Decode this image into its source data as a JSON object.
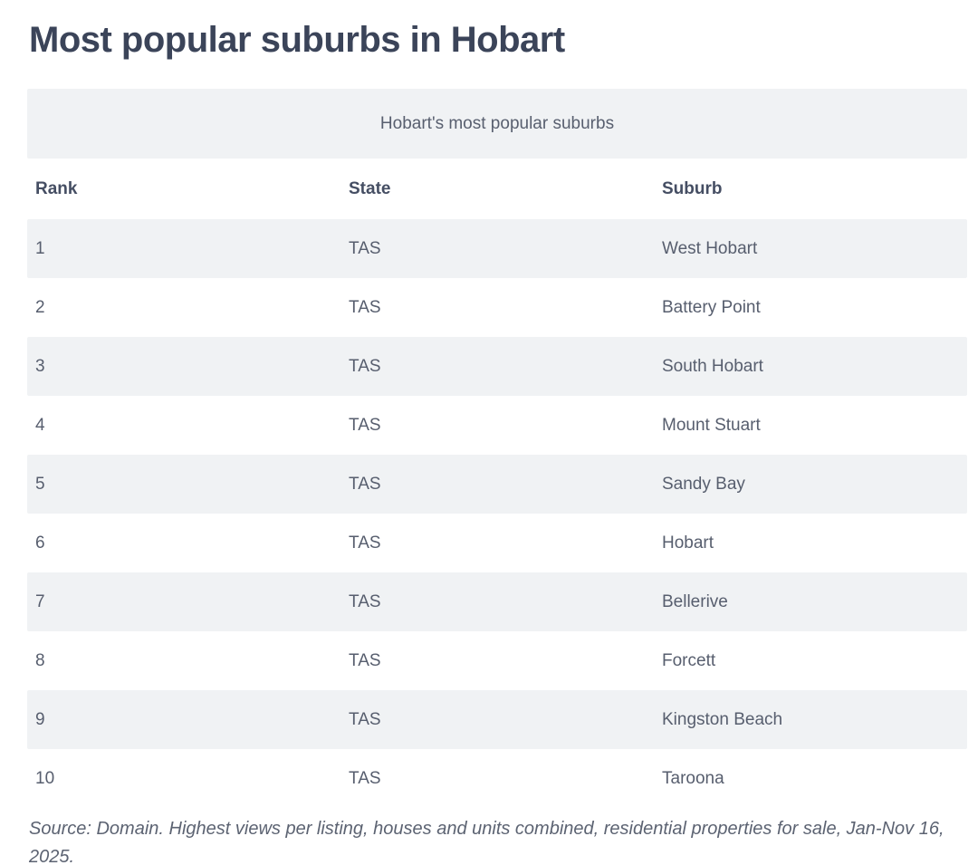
{
  "page": {
    "title": "Most popular suburbs in Hobart",
    "source_note": "Source: Domain. Highest views per listing, houses and units combined, residential properties for sale, Jan-Nov 16, 2025."
  },
  "table": {
    "caption": "Hobart's most popular suburbs",
    "columns": [
      "Rank",
      "State",
      "Suburb"
    ],
    "rows": [
      [
        "1",
        "TAS",
        "West Hobart"
      ],
      [
        "2",
        "TAS",
        "Battery Point"
      ],
      [
        "3",
        "TAS",
        "South Hobart"
      ],
      [
        "4",
        "TAS",
        "Mount Stuart"
      ],
      [
        "5",
        "TAS",
        "Sandy Bay"
      ],
      [
        "6",
        "TAS",
        "Hobart"
      ],
      [
        "7",
        "TAS",
        "Bellerive"
      ],
      [
        "8",
        "TAS",
        "Forcett"
      ],
      [
        "9",
        "TAS",
        "Kingston Beach"
      ],
      [
        "10",
        "TAS",
        "Taroona"
      ]
    ]
  },
  "colors": {
    "title_text": "#3b4459",
    "header_text": "#454e63",
    "cell_text": "#575e6e",
    "stripe_background": "#f0f2f4",
    "page_background": "#ffffff",
    "source_text": "#5c6372"
  },
  "chart_data": {
    "type": "table",
    "title": "Hobart's most popular suburbs",
    "columns": [
      "Rank",
      "State",
      "Suburb"
    ],
    "rows": [
      [
        1,
        "TAS",
        "West Hobart"
      ],
      [
        2,
        "TAS",
        "Battery Point"
      ],
      [
        3,
        "TAS",
        "South Hobart"
      ],
      [
        4,
        "TAS",
        "Mount Stuart"
      ],
      [
        5,
        "TAS",
        "Sandy Bay"
      ],
      [
        6,
        "TAS",
        "Hobart"
      ],
      [
        7,
        "TAS",
        "Bellerive"
      ],
      [
        8,
        "TAS",
        "Forcett"
      ],
      [
        9,
        "TAS",
        "Kingston Beach"
      ],
      [
        10,
        "TAS",
        "Taroona"
      ]
    ],
    "notes": "Source: Domain. Highest views per listing, houses and units combined, residential properties for sale, Jan-Nov 16, 2025.",
    "layout": "zebra-striped rows (odd rows shaded), caption band centered above header"
  }
}
